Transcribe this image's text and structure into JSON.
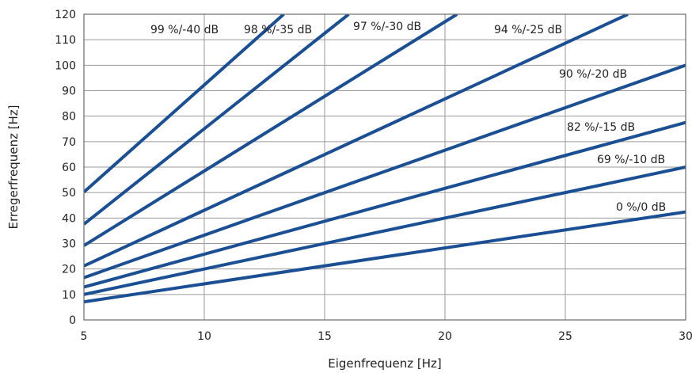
{
  "chart_data": {
    "type": "line",
    "xlabel": "Eigenfrequenz [Hz]",
    "ylabel": "Erregerfrequenz [Hz]",
    "xlim": [
      5,
      30
    ],
    "ylim": [
      0,
      120
    ],
    "x_ticks": [
      5,
      10,
      15,
      20,
      25,
      30
    ],
    "y_ticks": [
      0,
      10,
      20,
      30,
      40,
      50,
      60,
      70,
      80,
      90,
      100,
      110,
      120
    ],
    "x_tick_labels": [
      "5",
      "10",
      "15",
      "20",
      "25",
      "30"
    ],
    "y_tick_labels": [
      "0",
      "10",
      "20",
      "30",
      "40",
      "50",
      "60",
      "70",
      "80",
      "90",
      "100",
      "110",
      "120"
    ],
    "grid": true,
    "legend": "none",
    "line_color": "#1b4f93",
    "series": [
      {
        "name": "99 %/-40 dB",
        "x": [
          5,
          13.3
        ],
        "y": [
          50.2,
          120
        ]
      },
      {
        "name": "98 %/-35 dB",
        "x": [
          5,
          16.0
        ],
        "y": [
          37.6,
          120
        ]
      },
      {
        "name": "97 %/-30 dB",
        "x": [
          5,
          20.5
        ],
        "y": [
          29.2,
          120
        ]
      },
      {
        "name": "94 %/-25 dB",
        "x": [
          5,
          27.6
        ],
        "y": [
          21.2,
          120
        ]
      },
      {
        "name": "90 %/-20 dB",
        "x": [
          5,
          30
        ],
        "y": [
          16.6,
          100
        ]
      },
      {
        "name": "82 %/-15 dB",
        "x": [
          5,
          30
        ],
        "y": [
          12.9,
          77.5
        ]
      },
      {
        "name": "69 %/-10 dB",
        "x": [
          5,
          30
        ],
        "y": [
          10.0,
          60.0
        ]
      },
      {
        "name": "0 %/0 dB",
        "x": [
          5,
          30
        ],
        "y": [
          7.1,
          42.4
        ]
      }
    ]
  }
}
